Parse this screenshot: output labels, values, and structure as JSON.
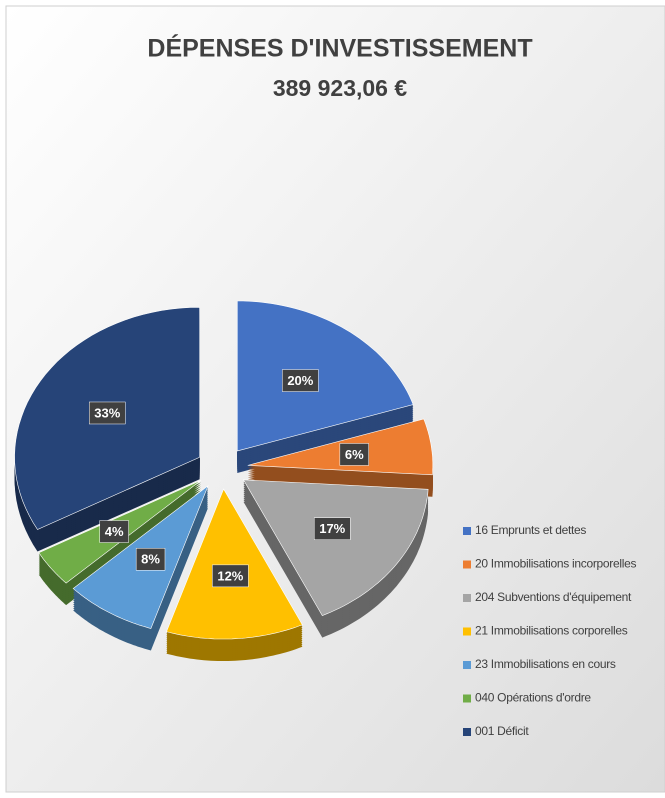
{
  "chart_data": {
    "type": "pie",
    "title": "DÉPENSES D'INVESTISSEMENT",
    "subtitle": "389 923,06 €",
    "categories": [
      "16 Emprunts et dettes",
      "20 Immobilisations incorporelles",
      "204 Subventions d'équipement",
      "21 Immobilisations corporelles",
      "23 Immobilisations en cours",
      "040 Opérations d'ordre",
      "001 Déficit"
    ],
    "values": [
      20,
      6,
      17,
      12,
      8,
      4,
      33
    ],
    "value_labels": [
      "20%",
      "6%",
      "17%",
      "12%",
      "8%",
      "4%",
      "33%"
    ],
    "colors": [
      "#4472c4",
      "#ed7d31",
      "#a5a5a5",
      "#ffc000",
      "#5b9bd5",
      "#70ad47",
      "#264478"
    ],
    "legend": "bottom-right"
  }
}
